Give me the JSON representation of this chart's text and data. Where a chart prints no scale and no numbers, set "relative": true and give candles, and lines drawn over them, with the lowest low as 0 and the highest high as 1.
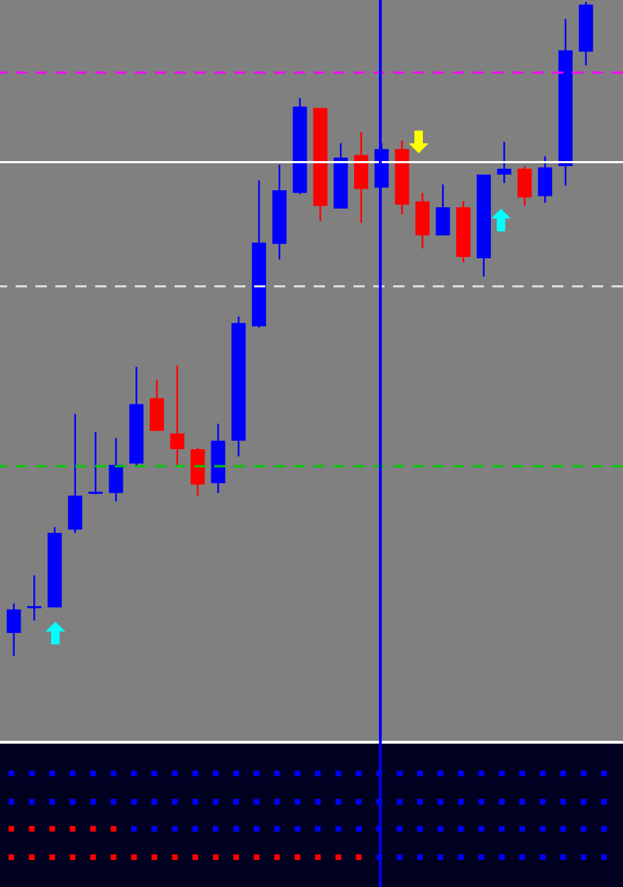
{
  "chart_data": {
    "type": "candlestick",
    "relative": true,
    "categories": [
      null,
      null,
      null,
      null,
      null,
      null,
      null,
      null,
      null,
      null,
      null,
      null,
      null,
      null,
      null,
      null,
      null,
      null,
      null,
      null,
      null,
      null,
      null,
      null,
      null,
      null,
      null,
      null,
      null
    ],
    "ohlc": [
      [
        0.035,
        0.08,
        0,
        0.071
      ],
      [
        0.074,
        0.123,
        0.054,
        0.076
      ],
      [
        0.074,
        0.197,
        0.074,
        0.188
      ],
      [
        0.193,
        0.37,
        0.188,
        0.245
      ],
      [
        0.249,
        0.342,
        0.247,
        0.251
      ],
      [
        0.249,
        0.333,
        0.236,
        0.292
      ],
      [
        0.294,
        0.442,
        0.29,
        0.385
      ],
      [
        0.394,
        0.422,
        0.344,
        0.344
      ],
      [
        0.34,
        0.444,
        0.292,
        0.316
      ],
      [
        0.316,
        0.318,
        0.245,
        0.262
      ],
      [
        0.264,
        0.355,
        0.249,
        0.329
      ],
      [
        0.329,
        0.519,
        0.305,
        0.509
      ],
      [
        0.504,
        0.727,
        0.502,
        0.632
      ],
      [
        0.63,
        0.751,
        0.606,
        0.712
      ],
      [
        0.708,
        0.853,
        0.706,
        0.84
      ],
      [
        0.838,
        0.838,
        0.665,
        0.688
      ],
      [
        0.684,
        0.784,
        0.684,
        0.762
      ],
      [
        0.766,
        0.801,
        0.662,
        0.714
      ],
      [
        0.716,
        0.784,
        0.716,
        0.775
      ],
      [
        0.775,
        0.788,
        0.675,
        0.69
      ],
      [
        0.695,
        0.708,
        0.623,
        0.643
      ],
      [
        0.643,
        0.721,
        0.643,
        0.686
      ],
      [
        0.686,
        0.695,
        0.602,
        0.61
      ],
      [
        0.608,
        0.736,
        0.58,
        0.736
      ],
      [
        0.736,
        0.786,
        0.723,
        0.745
      ],
      [
        0.745,
        0.749,
        0.688,
        0.701
      ],
      [
        0.703,
        0.764,
        0.693,
        0.747
      ],
      [
        0.749,
        0.974,
        0.719,
        0.926
      ],
      [
        0.924,
        1,
        0.903,
        0.996
      ]
    ],
    "colors": [
      "#0000ff",
      "#0000ff",
      "#0000ff",
      "#0000ff",
      "#0000ff",
      "#0000ff",
      "#0000ff",
      "#ff0000",
      "#ff0000",
      "#ff0000",
      "#0000ff",
      "#0000ff",
      "#0000ff",
      "#0000ff",
      "#0000ff",
      "#ff0000",
      "#0000ff",
      "#ff0000",
      "#0000ff",
      "#ff0000",
      "#ff0000",
      "#0000ff",
      "#ff0000",
      "#0000ff",
      "#0000ff",
      "#ff0000",
      "#0000ff",
      "#0000ff",
      "#0000ff"
    ],
    "ref_lines": [
      {
        "axis": "y",
        "value": 0.892,
        "color": "#ff00ff",
        "line_style": "dashed"
      },
      {
        "axis": "y",
        "value": 0.755,
        "color": "#ffffff",
        "line_style": "solid"
      },
      {
        "axis": "y",
        "value": 0.565,
        "color": "#dddddd",
        "line_style": "dashed"
      },
      {
        "axis": "y",
        "value": 0.29,
        "color": "#00cc00",
        "line_style": "dashed"
      }
    ]
  }
}
